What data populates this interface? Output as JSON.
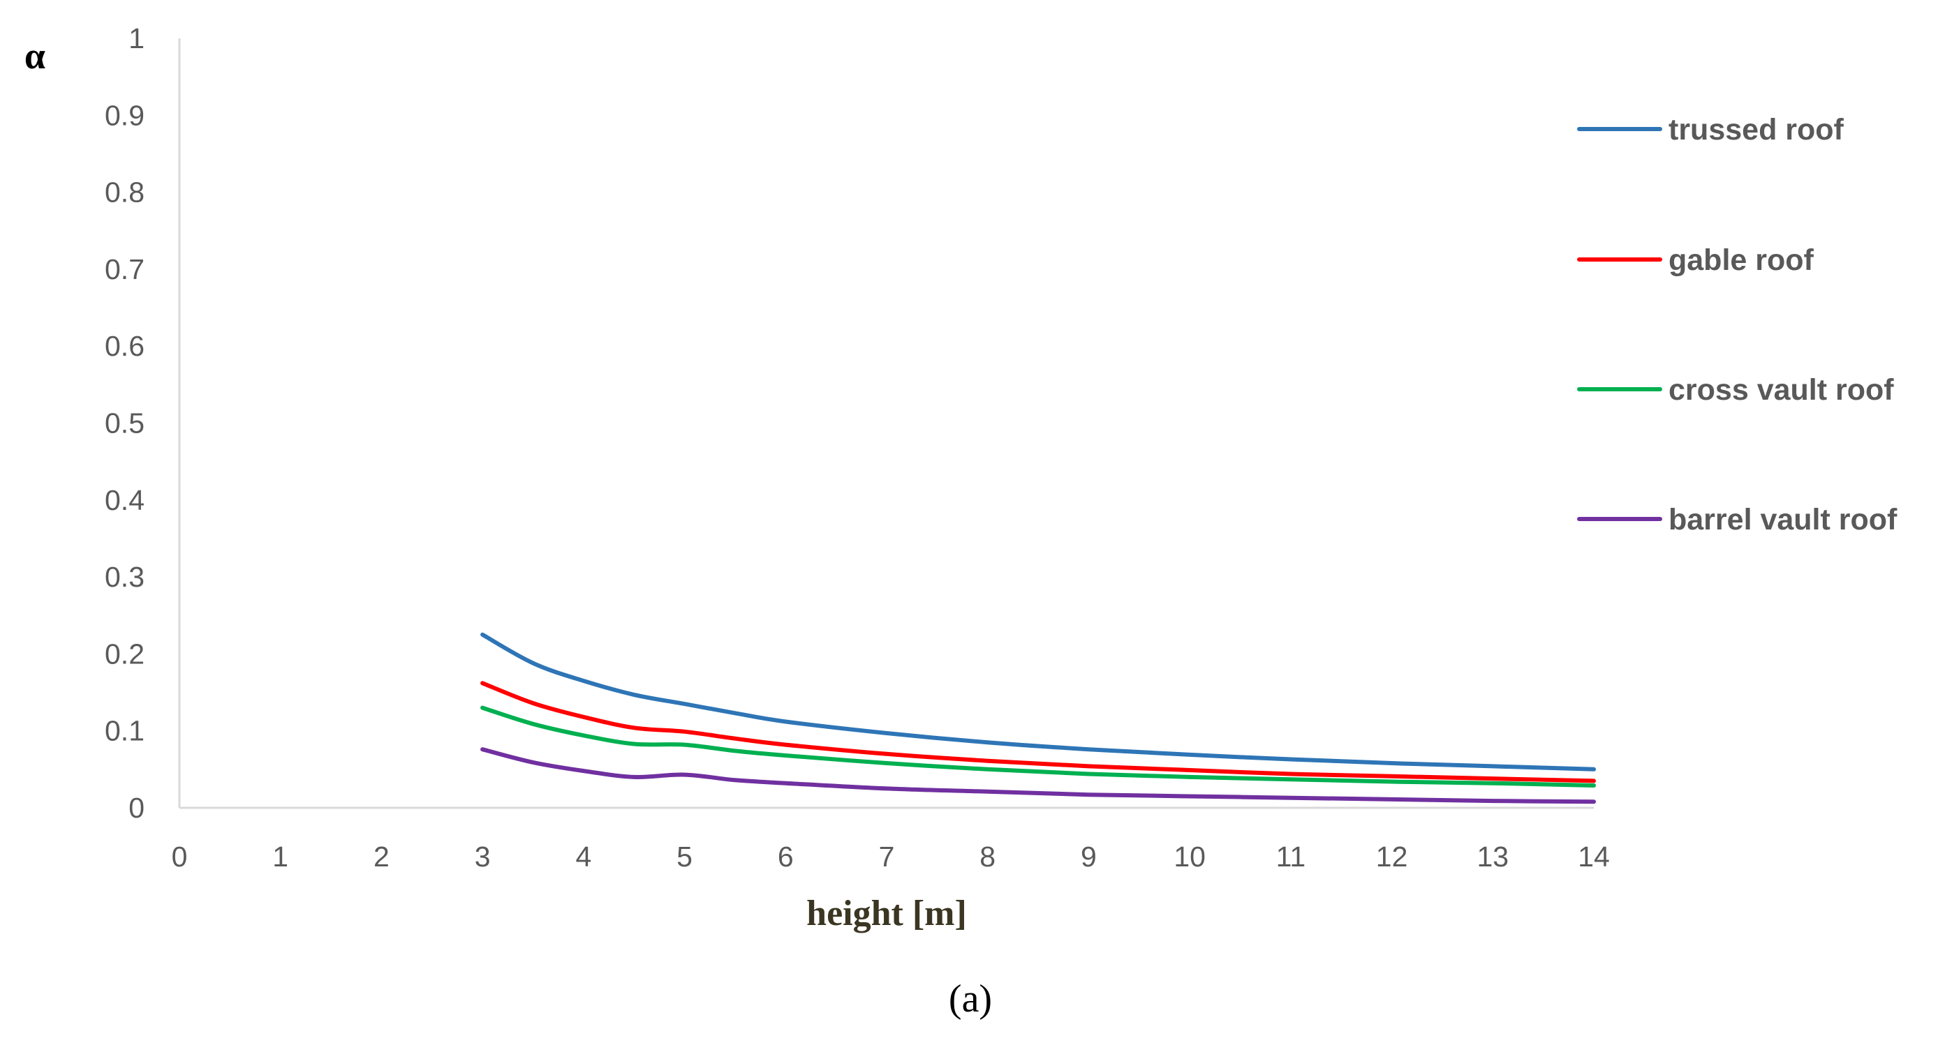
{
  "chart_data": {
    "type": "line",
    "title": "",
    "xlabel": "height [m]",
    "ylabel": "α",
    "panel_label": "(a)",
    "xlim": [
      0,
      14
    ],
    "ylim": [
      0,
      1
    ],
    "x_ticks": [
      "0",
      "1",
      "2",
      "3",
      "4",
      "5",
      "6",
      "7",
      "8",
      "9",
      "10",
      "11",
      "12",
      "13",
      "14"
    ],
    "y_ticks": [
      "0",
      "0.1",
      "0.2",
      "0.3",
      "0.4",
      "0.5",
      "0.6",
      "0.7",
      "0.8",
      "0.9",
      "1"
    ],
    "grid": false,
    "legend_position": "right",
    "x": [
      3,
      3.5,
      4,
      4.5,
      5,
      5.5,
      6,
      7,
      8,
      9,
      10,
      11,
      12,
      13,
      14
    ],
    "series": [
      {
        "name": "trussed roof",
        "color": "#2e75b6",
        "values": [
          0.225,
          0.188,
          0.165,
          0.147,
          0.135,
          0.123,
          0.112,
          0.097,
          0.085,
          0.076,
          0.069,
          0.063,
          0.058,
          0.054,
          0.05
        ]
      },
      {
        "name": "gable roof",
        "color": "#ff0000",
        "values": [
          0.162,
          0.136,
          0.118,
          0.104,
          0.099,
          0.09,
          0.082,
          0.07,
          0.061,
          0.054,
          0.049,
          0.044,
          0.041,
          0.038,
          0.035
        ]
      },
      {
        "name": "cross vault roof",
        "color": "#00b050",
        "values": [
          0.13,
          0.109,
          0.094,
          0.083,
          0.082,
          0.074,
          0.068,
          0.058,
          0.05,
          0.044,
          0.04,
          0.037,
          0.034,
          0.032,
          0.029
        ]
      },
      {
        "name": "barrel vault roof",
        "color": "#7030a0",
        "values": [
          0.076,
          0.059,
          0.048,
          0.04,
          0.043,
          0.036,
          0.032,
          0.025,
          0.021,
          0.017,
          0.015,
          0.013,
          0.011,
          0.009,
          0.008
        ]
      }
    ]
  }
}
